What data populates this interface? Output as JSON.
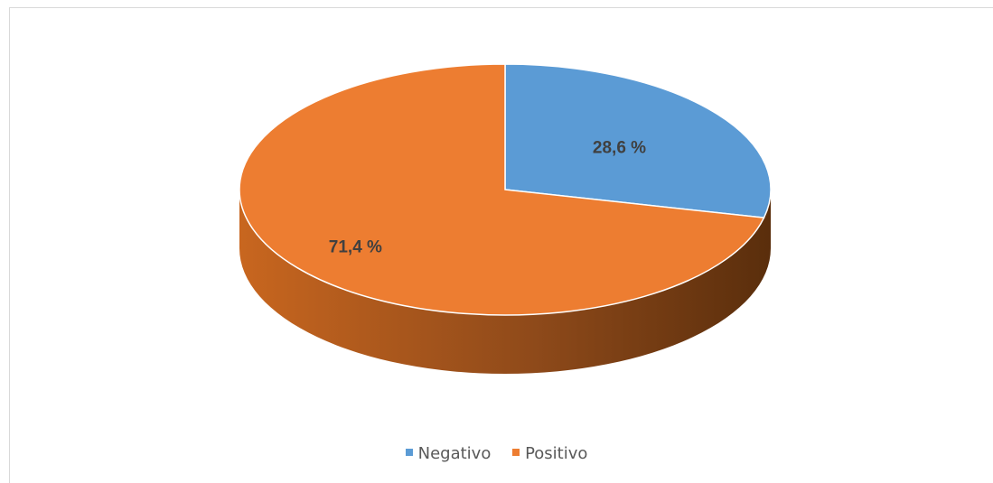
{
  "chart_data": {
    "type": "pie",
    "style": "3d",
    "title": "",
    "slices": [
      {
        "name": "Negativo",
        "value": 28.6,
        "label": "28,6 %",
        "color": "#5b9bd5"
      },
      {
        "name": "Positivo",
        "value": 71.4,
        "label": "71,4 %",
        "color": "#ed7d31"
      }
    ],
    "legend_position": "bottom"
  }
}
